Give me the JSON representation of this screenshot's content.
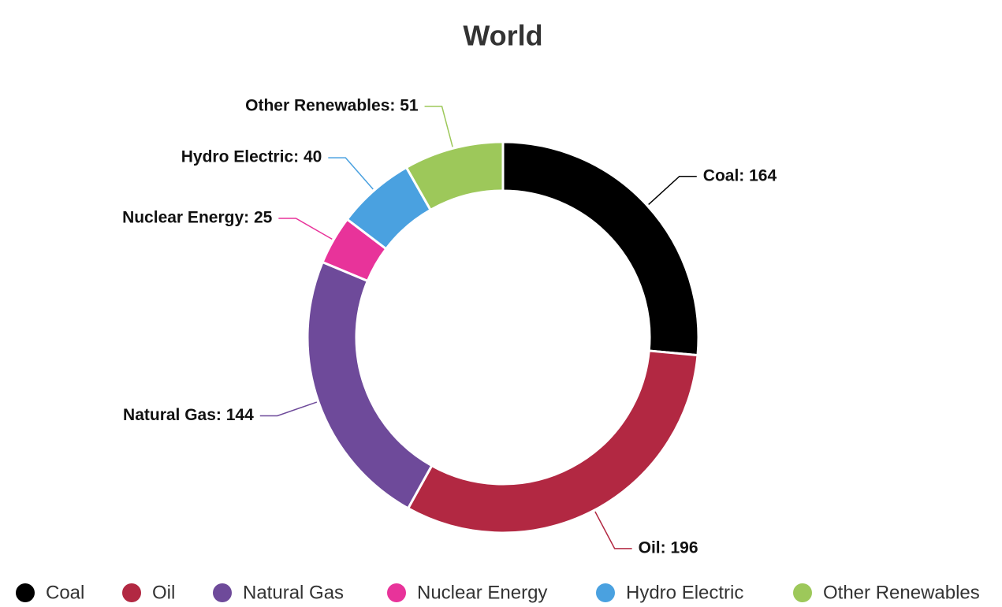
{
  "chart_data": {
    "type": "pie",
    "title": "World",
    "categories": [
      "Coal",
      "Oil",
      "Natural Gas",
      "Nuclear Energy",
      "Hydro Electric",
      "Other Renewables"
    ],
    "values": [
      164,
      196,
      144,
      25,
      40,
      51
    ],
    "value_labels": [
      "Coal: 164",
      "Oil: 196",
      "Natural Gas: 144",
      "Nuclear Energy: 25",
      "Hydro Electric: 40",
      "Other Renewables: 51"
    ],
    "colors": [
      "#000000",
      "#b22842",
      "#6e4a9a",
      "#e8339a",
      "#4aa1e0",
      "#9dc85a"
    ]
  }
}
